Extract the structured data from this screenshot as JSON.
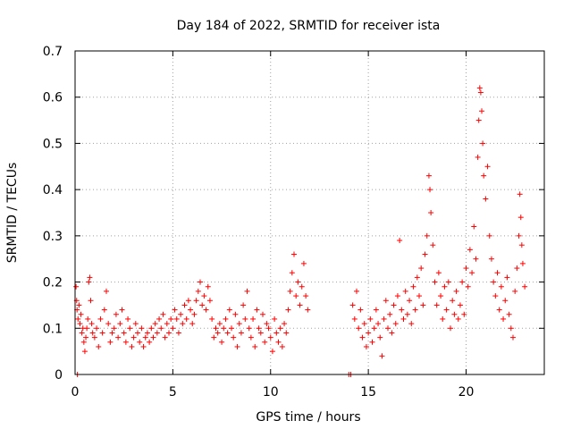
{
  "chart_data": {
    "type": "scatter",
    "title": "Day 184 of 2022, SRMTID for receiver ista",
    "xlabel": "GPS time / hours",
    "ylabel": "SRMTID / TECUs",
    "xlim": [
      0,
      24
    ],
    "ylim": [
      0,
      0.7
    ],
    "xticks": [
      0,
      5,
      10,
      15,
      20
    ],
    "yticks": [
      0,
      0.1,
      0.2,
      0.3,
      0.4,
      0.5,
      0.6,
      0.7
    ],
    "grid": true,
    "marker": "+",
    "color": "#ff0000",
    "series": [
      {
        "name": "SRMTID",
        "points": [
          [
            0.05,
            0.19
          ],
          [
            0.08,
            0.16
          ],
          [
            0.1,
            0.14
          ],
          [
            0.12,
            0.0
          ],
          [
            0.15,
            0.12
          ],
          [
            0.2,
            0.15
          ],
          [
            0.25,
            0.11
          ],
          [
            0.3,
            0.13
          ],
          [
            0.35,
            0.09
          ],
          [
            0.4,
            0.1
          ],
          [
            0.45,
            0.07
          ],
          [
            0.5,
            0.05
          ],
          [
            0.55,
            0.08
          ],
          [
            0.6,
            0.1
          ],
          [
            0.65,
            0.12
          ],
          [
            0.7,
            0.2
          ],
          [
            0.75,
            0.21
          ],
          [
            0.8,
            0.16
          ],
          [
            0.85,
            0.11
          ],
          [
            0.9,
            0.09
          ],
          [
            1.0,
            0.08
          ],
          [
            1.1,
            0.1
          ],
          [
            1.2,
            0.06
          ],
          [
            1.3,
            0.12
          ],
          [
            1.4,
            0.09
          ],
          [
            1.5,
            0.14
          ],
          [
            1.6,
            0.18
          ],
          [
            1.7,
            0.11
          ],
          [
            1.8,
            0.07
          ],
          [
            1.9,
            0.09
          ],
          [
            2.0,
            0.1
          ],
          [
            2.1,
            0.13
          ],
          [
            2.2,
            0.08
          ],
          [
            2.3,
            0.11
          ],
          [
            2.4,
            0.14
          ],
          [
            2.5,
            0.09
          ],
          [
            2.6,
            0.07
          ],
          [
            2.7,
            0.12
          ],
          [
            2.8,
            0.1
          ],
          [
            2.9,
            0.06
          ],
          [
            3.0,
            0.08
          ],
          [
            3.1,
            0.11
          ],
          [
            3.2,
            0.09
          ],
          [
            3.3,
            0.07
          ],
          [
            3.4,
            0.1
          ],
          [
            3.5,
            0.06
          ],
          [
            3.6,
            0.08
          ],
          [
            3.7,
            0.09
          ],
          [
            3.8,
            0.07
          ],
          [
            3.9,
            0.1
          ],
          [
            4.0,
            0.08
          ],
          [
            4.1,
            0.11
          ],
          [
            4.2,
            0.09
          ],
          [
            4.3,
            0.12
          ],
          [
            4.4,
            0.1
          ],
          [
            4.5,
            0.13
          ],
          [
            4.6,
            0.08
          ],
          [
            4.7,
            0.11
          ],
          [
            4.8,
            0.09
          ],
          [
            4.9,
            0.12
          ],
          [
            5.0,
            0.1
          ],
          [
            5.1,
            0.14
          ],
          [
            5.2,
            0.12
          ],
          [
            5.3,
            0.09
          ],
          [
            5.4,
            0.13
          ],
          [
            5.5,
            0.11
          ],
          [
            5.6,
            0.15
          ],
          [
            5.7,
            0.12
          ],
          [
            5.8,
            0.16
          ],
          [
            5.9,
            0.14
          ],
          [
            6.0,
            0.11
          ],
          [
            6.1,
            0.13
          ],
          [
            6.2,
            0.16
          ],
          [
            6.3,
            0.18
          ],
          [
            6.4,
            0.2
          ],
          [
            6.5,
            0.15
          ],
          [
            6.6,
            0.17
          ],
          [
            6.7,
            0.14
          ],
          [
            6.8,
            0.19
          ],
          [
            6.9,
            0.16
          ],
          [
            7.0,
            0.12
          ],
          [
            7.1,
            0.08
          ],
          [
            7.2,
            0.1
          ],
          [
            7.3,
            0.09
          ],
          [
            7.4,
            0.11
          ],
          [
            7.5,
            0.07
          ],
          [
            7.6,
            0.1
          ],
          [
            7.7,
            0.12
          ],
          [
            7.8,
            0.09
          ],
          [
            7.9,
            0.14
          ],
          [
            8.0,
            0.1
          ],
          [
            8.1,
            0.08
          ],
          [
            8.2,
            0.13
          ],
          [
            8.3,
            0.06
          ],
          [
            8.4,
            0.11
          ],
          [
            8.5,
            0.09
          ],
          [
            8.6,
            0.15
          ],
          [
            8.7,
            0.12
          ],
          [
            8.8,
            0.18
          ],
          [
            8.9,
            0.1
          ],
          [
            9.0,
            0.08
          ],
          [
            9.1,
            0.12
          ],
          [
            9.2,
            0.06
          ],
          [
            9.3,
            0.14
          ],
          [
            9.4,
            0.1
          ],
          [
            9.5,
            0.09
          ],
          [
            9.6,
            0.13
          ],
          [
            9.7,
            0.07
          ],
          [
            9.8,
            0.11
          ],
          [
            9.9,
            0.1
          ],
          [
            10.0,
            0.08
          ],
          [
            10.1,
            0.05
          ],
          [
            10.2,
            0.12
          ],
          [
            10.3,
            0.09
          ],
          [
            10.4,
            0.07
          ],
          [
            10.5,
            0.1
          ],
          [
            10.6,
            0.06
          ],
          [
            10.7,
            0.11
          ],
          [
            10.8,
            0.09
          ],
          [
            10.9,
            0.14
          ],
          [
            11.0,
            0.18
          ],
          [
            11.1,
            0.22
          ],
          [
            11.2,
            0.26
          ],
          [
            11.3,
            0.17
          ],
          [
            11.4,
            0.2
          ],
          [
            11.5,
            0.15
          ],
          [
            11.6,
            0.19
          ],
          [
            11.7,
            0.24
          ],
          [
            11.8,
            0.17
          ],
          [
            11.9,
            0.14
          ],
          [
            14.0,
            0.0
          ],
          [
            14.1,
            0.0
          ],
          [
            14.2,
            0.15
          ],
          [
            14.3,
            0.12
          ],
          [
            14.4,
            0.18
          ],
          [
            14.5,
            0.1
          ],
          [
            14.6,
            0.14
          ],
          [
            14.7,
            0.08
          ],
          [
            14.8,
            0.11
          ],
          [
            14.9,
            0.06
          ],
          [
            15.0,
            0.09
          ],
          [
            15.1,
            0.12
          ],
          [
            15.2,
            0.07
          ],
          [
            15.3,
            0.1
          ],
          [
            15.4,
            0.14
          ],
          [
            15.5,
            0.11
          ],
          [
            15.6,
            0.08
          ],
          [
            15.7,
            0.04
          ],
          [
            15.8,
            0.12
          ],
          [
            15.9,
            0.16
          ],
          [
            16.0,
            0.1
          ],
          [
            16.1,
            0.13
          ],
          [
            16.2,
            0.09
          ],
          [
            16.3,
            0.15
          ],
          [
            16.4,
            0.11
          ],
          [
            16.5,
            0.17
          ],
          [
            16.6,
            0.29
          ],
          [
            16.7,
            0.14
          ],
          [
            16.8,
            0.12
          ],
          [
            16.9,
            0.18
          ],
          [
            17.0,
            0.13
          ],
          [
            17.1,
            0.16
          ],
          [
            17.2,
            0.11
          ],
          [
            17.3,
            0.19
          ],
          [
            17.4,
            0.14
          ],
          [
            17.5,
            0.21
          ],
          [
            17.6,
            0.17
          ],
          [
            17.7,
            0.23
          ],
          [
            17.8,
            0.15
          ],
          [
            17.9,
            0.26
          ],
          [
            18.0,
            0.3
          ],
          [
            18.1,
            0.43
          ],
          [
            18.15,
            0.4
          ],
          [
            18.2,
            0.35
          ],
          [
            18.3,
            0.28
          ],
          [
            18.4,
            0.2
          ],
          [
            18.5,
            0.15
          ],
          [
            18.6,
            0.22
          ],
          [
            18.7,
            0.17
          ],
          [
            18.8,
            0.12
          ],
          [
            18.9,
            0.19
          ],
          [
            19.0,
            0.14
          ],
          [
            19.1,
            0.2
          ],
          [
            19.2,
            0.1
          ],
          [
            19.3,
            0.16
          ],
          [
            19.4,
            0.13
          ],
          [
            19.5,
            0.18
          ],
          [
            19.6,
            0.12
          ],
          [
            19.7,
            0.15
          ],
          [
            19.8,
            0.2
          ],
          [
            19.9,
            0.13
          ],
          [
            20.0,
            0.23
          ],
          [
            20.1,
            0.19
          ],
          [
            20.2,
            0.27
          ],
          [
            20.3,
            0.22
          ],
          [
            20.4,
            0.32
          ],
          [
            20.5,
            0.25
          ],
          [
            20.6,
            0.47
          ],
          [
            20.65,
            0.55
          ],
          [
            20.7,
            0.62
          ],
          [
            20.75,
            0.61
          ],
          [
            20.8,
            0.57
          ],
          [
            20.85,
            0.5
          ],
          [
            20.9,
            0.43
          ],
          [
            21.0,
            0.38
          ],
          [
            21.1,
            0.45
          ],
          [
            21.2,
            0.3
          ],
          [
            21.3,
            0.25
          ],
          [
            21.4,
            0.2
          ],
          [
            21.5,
            0.17
          ],
          [
            21.6,
            0.22
          ],
          [
            21.7,
            0.14
          ],
          [
            21.8,
            0.19
          ],
          [
            21.9,
            0.12
          ],
          [
            22.0,
            0.16
          ],
          [
            22.1,
            0.21
          ],
          [
            22.2,
            0.13
          ],
          [
            22.3,
            0.1
          ],
          [
            22.4,
            0.08
          ],
          [
            22.5,
            0.18
          ],
          [
            22.6,
            0.23
          ],
          [
            22.7,
            0.3
          ],
          [
            22.75,
            0.39
          ],
          [
            22.8,
            0.34
          ],
          [
            22.85,
            0.28
          ],
          [
            22.9,
            0.24
          ],
          [
            23.0,
            0.19
          ]
        ]
      }
    ]
  }
}
